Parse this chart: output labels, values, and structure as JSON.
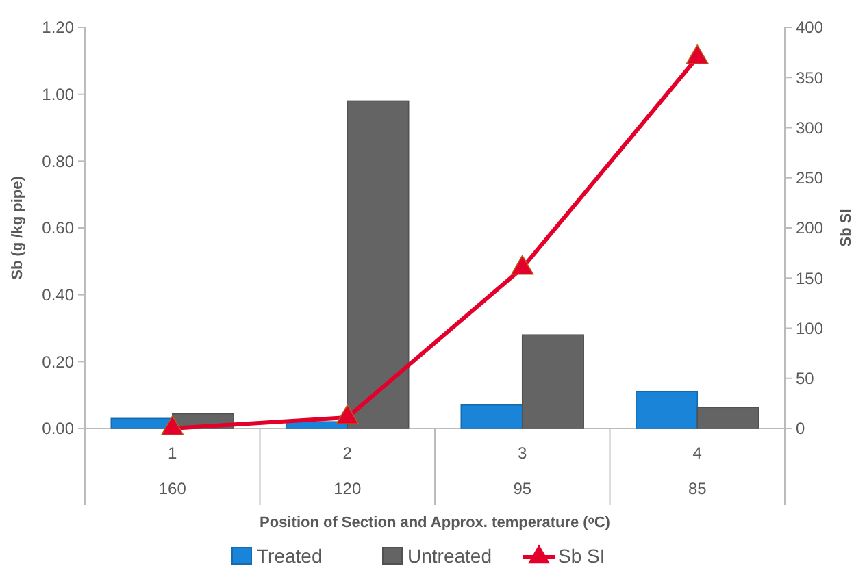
{
  "chart_data": {
    "type": "bar",
    "xlabel": "Position of Section and Approx. temperature (ᵒC)",
    "ylabel": "Sb (g /kg pipe)",
    "y2label": "Sb SI",
    "categories": [
      "1\n160",
      "2\n120",
      "3\n95",
      "4\n85"
    ],
    "series": [
      {
        "name": "Treated",
        "color": "#1a84d8",
        "values": [
          0.03,
          0.02,
          0.07,
          0.11
        ]
      },
      {
        "name": "Untreated",
        "color": "#646464",
        "values": [
          0.044,
          0.98,
          0.28,
          0.063
        ]
      },
      {
        "name": "Sb SI",
        "type": "line",
        "axis": "y2",
        "color": "#e3002b",
        "marker": "triangle",
        "values": [
          0,
          11,
          160,
          370
        ]
      }
    ],
    "ylim": [
      0,
      1.2
    ],
    "yticks": [
      {
        "value": 0,
        "label": "0.00"
      },
      {
        "value": 0.2,
        "label": "0.20"
      },
      {
        "value": 0.4,
        "label": "0.40"
      },
      {
        "value": 0.6,
        "label": "0.60"
      },
      {
        "value": 0.8,
        "label": "0.80"
      },
      {
        "value": 1,
        "label": "1.00"
      },
      {
        "value": 1.2,
        "label": "1.20"
      }
    ],
    "y2lim": [
      0,
      400
    ],
    "y2ticks": [
      0,
      50,
      100,
      150,
      200,
      250,
      300,
      350,
      400
    ],
    "grid": false,
    "legend": "bottom"
  }
}
